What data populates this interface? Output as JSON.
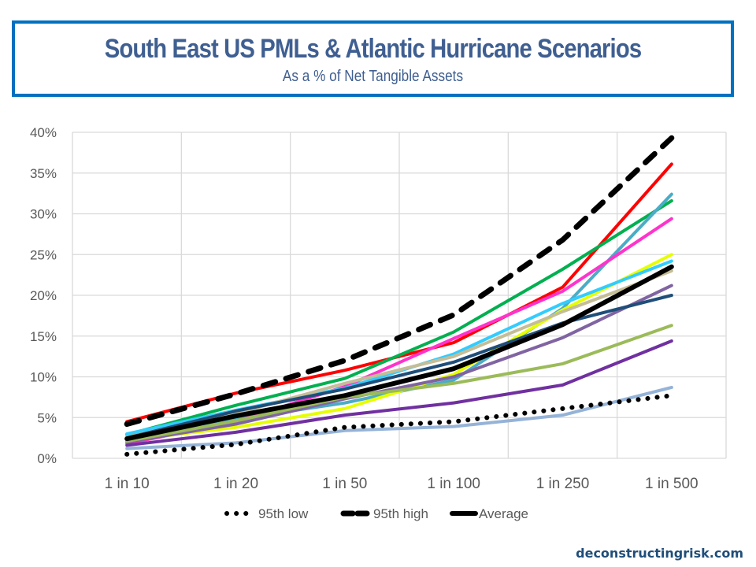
{
  "header": {
    "title": "South East US PMLs & Atlantic Hurricane Scenarios",
    "subtitle": "As a % of Net Tangible Assets"
  },
  "watermark": "deconstructingrisk.com",
  "chart_data": {
    "type": "line",
    "title": "South East US PMLs & Atlantic Hurricane Scenarios",
    "subtitle": "As a % of Net Tangible Assets",
    "xlabel": "",
    "ylabel": "",
    "categories": [
      "1 in 10",
      "1 in 20",
      "1 in 50",
      "1 in 100",
      "1 in 250",
      "1 in 500"
    ],
    "ylim": [
      0,
      40
    ],
    "yticks": [
      0,
      5,
      10,
      15,
      20,
      25,
      30,
      35,
      40
    ],
    "ytick_labels": [
      "0%",
      "5%",
      "10%",
      "15%",
      "20%",
      "25%",
      "30%",
      "35%",
      "40%"
    ],
    "grid": true,
    "legend_position": "bottom",
    "series": [
      {
        "name": "Red",
        "color": "#FF0000",
        "style": "solid",
        "legend": false,
        "values": [
          4.5,
          8.0,
          10.8,
          14.2,
          21.0,
          36.1
        ]
      },
      {
        "name": "Green",
        "color": "#00B050",
        "style": "solid",
        "legend": false,
        "values": [
          2.9,
          6.5,
          9.8,
          15.5,
          23.2,
          31.6
        ]
      },
      {
        "name": "Teal",
        "color": "#4BACC6",
        "style": "solid",
        "legend": false,
        "values": [
          2.6,
          4.8,
          6.8,
          9.6,
          18.4,
          32.4
        ]
      },
      {
        "name": "Pink",
        "color": "#FF33CC",
        "style": "solid",
        "legend": false,
        "values": [
          1.8,
          4.5,
          8.8,
          14.7,
          20.5,
          29.4
        ]
      },
      {
        "name": "Yellow",
        "color": "#E6FF00",
        "style": "solid",
        "legend": false,
        "values": [
          2.2,
          3.8,
          6.1,
          10.3,
          18.2,
          25.0
        ]
      },
      {
        "name": "Cyan",
        "color": "#33CCFF",
        "style": "solid",
        "legend": false,
        "values": [
          3.0,
          5.9,
          8.6,
          12.8,
          19.0,
          24.2
        ]
      },
      {
        "name": "Tan",
        "color": "#C4BD97",
        "style": "solid",
        "legend": false,
        "values": [
          2.6,
          5.5,
          9.2,
          12.5,
          18.0,
          23.0
        ]
      },
      {
        "name": "Light purple",
        "color": "#8064A2",
        "style": "solid",
        "legend": false,
        "values": [
          2.0,
          4.2,
          7.3,
          10.0,
          14.8,
          21.2
        ]
      },
      {
        "name": "Navy",
        "color": "#1F4E79",
        "style": "solid",
        "legend": false,
        "values": [
          2.5,
          5.8,
          8.5,
          11.8,
          16.6,
          20.0
        ]
      },
      {
        "name": "Olive",
        "color": "#9BBB59",
        "style": "solid",
        "legend": false,
        "values": [
          2.1,
          4.6,
          7.5,
          9.2,
          11.6,
          16.3
        ]
      },
      {
        "name": "Purple",
        "color": "#7030A0",
        "style": "solid",
        "legend": false,
        "values": [
          1.6,
          3.2,
          5.3,
          6.8,
          9.0,
          14.4
        ]
      },
      {
        "name": "Light blue",
        "color": "#95B3D7",
        "style": "solid",
        "legend": false,
        "values": [
          1.2,
          1.9,
          3.4,
          3.9,
          5.3,
          8.7
        ]
      },
      {
        "name": "95th low",
        "color": "#000000",
        "style": "dotted",
        "legend": true,
        "values": [
          0.5,
          1.7,
          3.8,
          4.5,
          6.1,
          7.7
        ]
      },
      {
        "name": "95th high",
        "color": "#000000",
        "style": "dashed",
        "legend": true,
        "values": [
          4.2,
          7.9,
          12.0,
          17.6,
          26.8,
          39.3
        ]
      },
      {
        "name": "Average",
        "color": "#000000",
        "style": "thick",
        "legend": true,
        "values": [
          2.4,
          5.2,
          7.7,
          11.0,
          16.4,
          23.5
        ]
      }
    ]
  }
}
